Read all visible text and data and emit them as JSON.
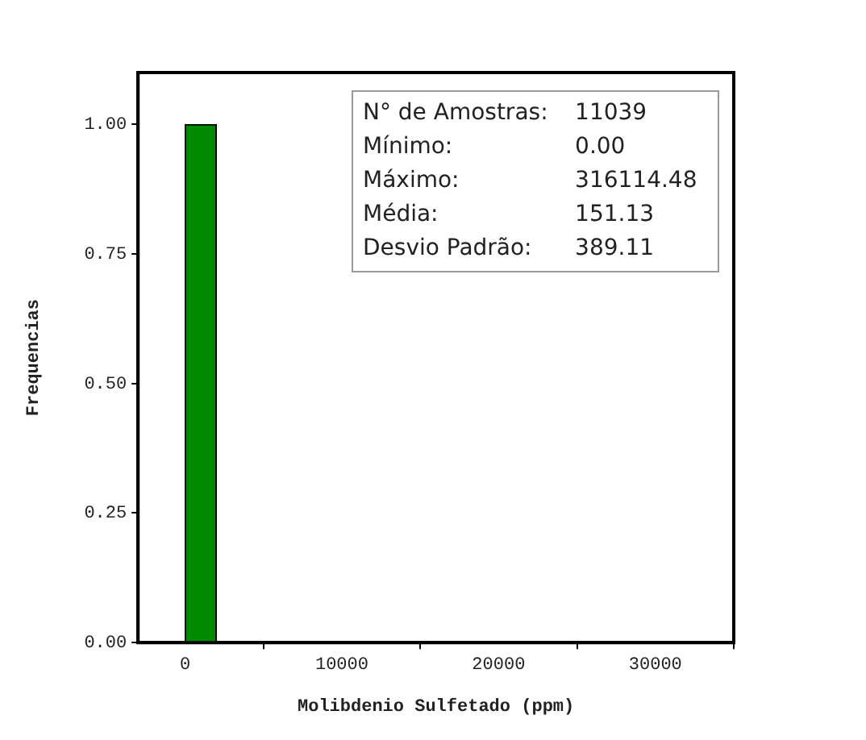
{
  "chart_data": {
    "type": "histogram",
    "xlabel": "Molibdenio Sulfetado (ppm)",
    "ylabel": "Frequencias",
    "bins": [
      0,
      2000
    ],
    "values": [
      1.0
    ],
    "color": "#008a00",
    "xlim": [
      -3000,
      35000
    ],
    "xticks": [
      0,
      10000,
      20000,
      30000
    ],
    "ylim": [
      0,
      1.1
    ],
    "yticks": [
      {
        "value": 0,
        "label": "0.00"
      },
      {
        "value": 0.25,
        "label": "0.25"
      },
      {
        "value": 0.5,
        "label": "0.50"
      },
      {
        "value": 0.75,
        "label": "0.75"
      },
      {
        "value": 1,
        "label": "1.00"
      }
    ],
    "grid": false,
    "legend": false,
    "annotations": [
      "N° de Amostras:",
      "11039",
      "Mínimo:",
      "0.00",
      "Máximo:",
      "316114.48",
      "Média:",
      "151.13",
      "Desvio Padrão:",
      "389.11"
    ]
  }
}
